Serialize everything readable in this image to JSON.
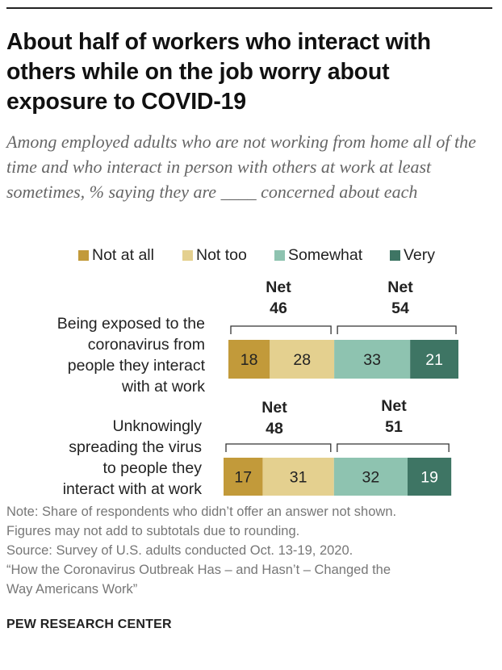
{
  "title": "About half of workers who interact with others while on the job worry about exposure to COVID-19",
  "subtitle": "Among employed adults who are not working from home all of the time and who interact in person with others at work at least sometimes, % saying they are ____ concerned about each",
  "chart_data": {
    "type": "bar",
    "orientation": "horizontal-stacked-diverging",
    "categories": [
      "Being exposed to the coronavirus from people they interact with at work",
      "Unknowingly spreading the virus to people they interact with at work"
    ],
    "series": [
      {
        "name": "Not at all",
        "color": "#c29a3a",
        "values": [
          18,
          17
        ]
      },
      {
        "name": "Not too",
        "color": "#e4d08f",
        "values": [
          28,
          31
        ]
      },
      {
        "name": "Somewhat",
        "color": "#8ec3b0",
        "values": [
          33,
          32
        ]
      },
      {
        "name": "Very",
        "color": "#3e7564",
        "values": [
          21,
          19
        ]
      }
    ],
    "nets": [
      {
        "label": "Net",
        "not_concerned": 46,
        "concerned": 54
      },
      {
        "label": "Net",
        "not_concerned": 48,
        "concerned": 51
      }
    ],
    "legend_position": "top"
  },
  "row_labels": [
    [
      "Being exposed to the",
      "coronavirus from",
      "people they interact",
      "with at work"
    ],
    [
      "Unknowingly",
      "spreading the virus",
      "to people they",
      "interact with at work"
    ]
  ],
  "notes": [
    "Note: Share of respondents who didn’t offer an answer not shown.",
    "Figures may not add to subtotals due to rounding.",
    "Source: Survey of U.S. adults conducted Oct. 13-19, 2020.",
    "“How the Coronavirus Outbreak Has – and Hasn’t – Changed the",
    "Way Americans Work”"
  ],
  "brand": "PEW RESEARCH CENTER"
}
